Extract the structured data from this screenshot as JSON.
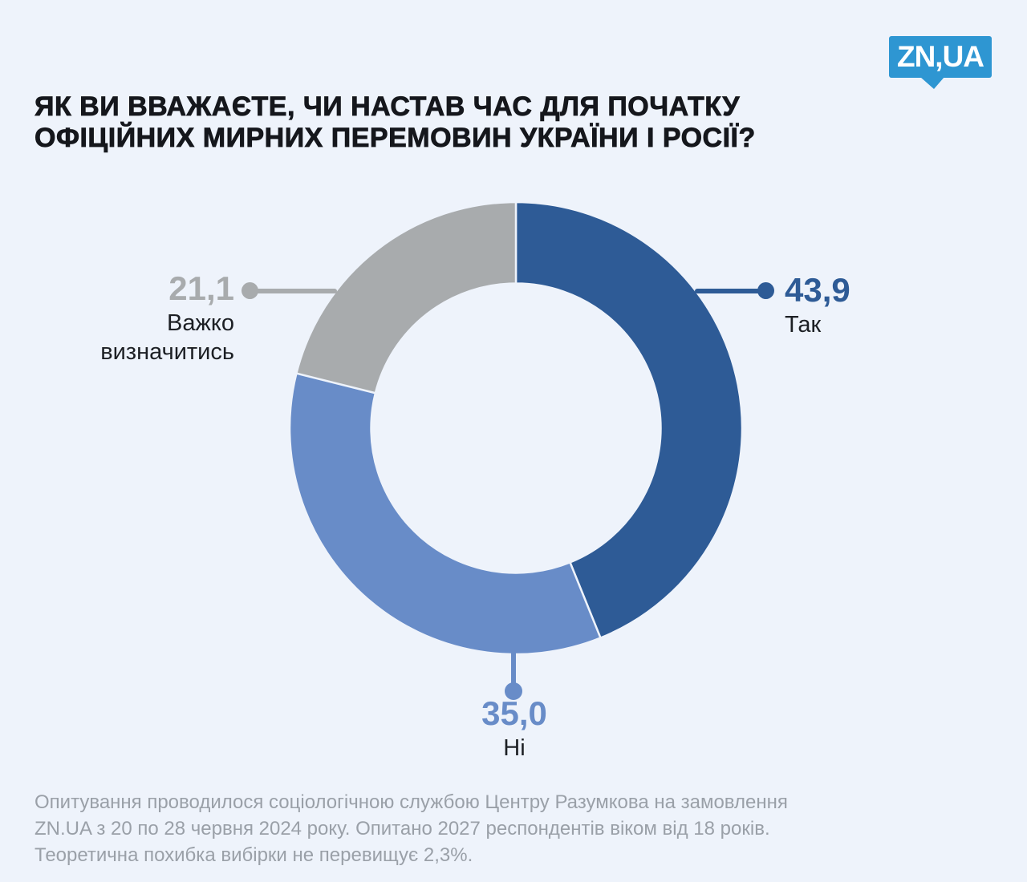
{
  "page": {
    "background": "#eef3fb"
  },
  "logo": {
    "text": "ZN,UA",
    "color": "#2e96d2"
  },
  "title": {
    "line1": "ЯК ВИ ВВАЖАЄТЕ, ЧИ НАСТАВ ЧАС ДЛЯ ПОЧАТКУ",
    "line2": "ОФІЦІЙНИХ МИРНИХ ПЕРЕМОВИН УКРАЇНИ І РОСІЇ?"
  },
  "chart_data": {
    "type": "pie",
    "subtype": "donut",
    "title": "ЯК ВИ ВВАЖАЄТЕ, ЧИ НАСТАВ ЧАС ДЛЯ ПОЧАТКУ ОФІЦІЙНИХ МИРНИХ ПЕРЕМОВИН УКРАЇНИ І РОСІЇ?",
    "unit": "percent",
    "start_angle_deg": 0,
    "direction": "clockwise",
    "donut_hole_ratio": 0.64,
    "separator_color": "#eef3fb",
    "segments": [
      {
        "label": "Так",
        "value": 43.9,
        "display_value": "43,9",
        "color": "#2e5b96"
      },
      {
        "label": "Ні",
        "value": 35.0,
        "display_value": "35,0",
        "color": "#688cc8"
      },
      {
        "label": "Важко визначитись",
        "value": 21.1,
        "display_value": "21,1",
        "color": "#a8abad"
      }
    ]
  },
  "footer": {
    "lines": [
      "Опитування проводилося  соціологічною службою Центру Разумкова на замовлення",
      "ZN.UA з 20 по 28 червня 2024 року. Опитано 2027 респондентів віком від 18 років.",
      "Теоретична похибка вибірки не перевищує 2,3%."
    ]
  }
}
